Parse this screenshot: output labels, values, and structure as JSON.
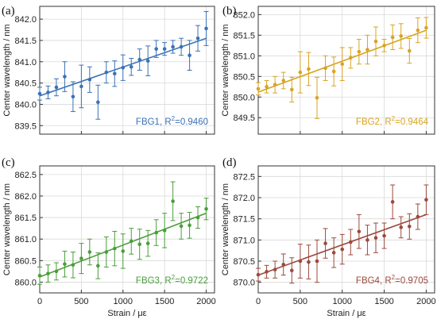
{
  "chart_data": [
    {
      "type": "scatter",
      "panel_label": "(a)",
      "xlabel": "",
      "ylabel": "Center wavelength / nm",
      "xlim": [
        0,
        2100
      ],
      "ylim": [
        839.3,
        842.3
      ],
      "xticks": [
        0,
        500,
        1000,
        1500,
        2000
      ],
      "yticks": [
        839.5,
        840.0,
        840.5,
        841.0,
        841.5,
        842.0
      ],
      "ytick_labels": [
        "839.5",
        "840.0",
        "840.5",
        "841.0",
        "841.5",
        "842.0"
      ],
      "show_xtick_labels": false,
      "grid": true,
      "color": "#3a72b5",
      "annotation": "FBG1, R",
      "annotation_sup": "2",
      "annotation_val": "=0.9460",
      "series": [
        {
          "x": [
            0,
            100,
            200,
            300,
            400,
            500,
            600,
            700,
            800,
            900,
            1000,
            1100,
            1200,
            1300,
            1400,
            1500,
            1600,
            1700,
            1800,
            1900,
            2000
          ],
          "y": [
            840.25,
            840.28,
            840.4,
            840.65,
            840.18,
            840.42,
            840.58,
            840.05,
            840.75,
            840.72,
            840.86,
            840.88,
            841.05,
            841.02,
            841.3,
            841.3,
            841.35,
            841.35,
            841.15,
            841.55,
            841.78
          ],
          "err": [
            0.15,
            0.15,
            0.2,
            0.35,
            0.35,
            0.5,
            0.3,
            0.4,
            0.25,
            0.3,
            0.3,
            0.2,
            0.25,
            0.35,
            0.2,
            0.15,
            0.15,
            0.2,
            0.35,
            0.3,
            0.4
          ]
        }
      ],
      "fit": {
        "x": [
          0,
          2000
        ],
        "y": [
          840.2,
          841.55
        ]
      }
    },
    {
      "type": "scatter",
      "panel_label": "(b)",
      "xlabel": "",
      "ylabel": "Center wavelength / nm",
      "xlim": [
        0,
        2100
      ],
      "ylim": [
        849.1,
        852.2
      ],
      "xticks": [
        0,
        500,
        1000,
        1500,
        2000
      ],
      "yticks": [
        849.5,
        850.0,
        850.5,
        851.0,
        851.5,
        852.0
      ],
      "ytick_labels": [
        "849.5",
        "850.0",
        "850.5",
        "851.0",
        "851.5",
        "852.0"
      ],
      "show_xtick_labels": false,
      "grid": true,
      "color": "#d8a423",
      "annotation": "FBG2, R",
      "annotation_sup": "2",
      "annotation_val": "=0.9464",
      "series": [
        {
          "x": [
            0,
            100,
            200,
            300,
            400,
            500,
            600,
            700,
            800,
            900,
            1000,
            1100,
            1200,
            1300,
            1400,
            1500,
            1600,
            1700,
            1800,
            1900,
            2000
          ],
          "y": [
            850.2,
            850.25,
            850.3,
            850.4,
            850.18,
            850.6,
            850.68,
            849.98,
            850.7,
            850.62,
            850.8,
            850.95,
            851.1,
            851.15,
            851.35,
            851.25,
            851.45,
            851.48,
            851.12,
            851.62,
            851.68
          ],
          "err": [
            0.15,
            0.15,
            0.2,
            0.2,
            0.3,
            0.5,
            0.4,
            0.5,
            0.3,
            0.35,
            0.4,
            0.25,
            0.3,
            0.35,
            0.35,
            0.15,
            0.3,
            0.3,
            0.3,
            0.3,
            0.25
          ]
        }
      ],
      "fit": {
        "x": [
          0,
          2000
        ],
        "y": [
          850.12,
          851.62
        ]
      }
    },
    {
      "type": "scatter",
      "panel_label": "(c)",
      "xlabel": "Strain / με",
      "ylabel": "Center wavelength / nm",
      "xlim": [
        0,
        2100
      ],
      "ylim": [
        859.75,
        862.7
      ],
      "xticks": [
        0,
        500,
        1000,
        1500,
        2000
      ],
      "xtick_labels": [
        "0",
        "500",
        "1000",
        "1500",
        "2000"
      ],
      "yticks": [
        860.0,
        860.5,
        861.0,
        861.5,
        862.0,
        862.5
      ],
      "ytick_labels": [
        "860.0",
        "860.5",
        "861.0",
        "861.5",
        "862.0",
        "862.5"
      ],
      "show_xtick_labels": true,
      "grid": true,
      "color": "#4a9e3a",
      "annotation": "FBG3, R",
      "annotation_sup": "2",
      "annotation_val": "=0.9722",
      "series": [
        {
          "x": [
            0,
            100,
            200,
            300,
            400,
            500,
            600,
            700,
            800,
            900,
            1000,
            1100,
            1200,
            1300,
            1400,
            1500,
            1600,
            1700,
            1800,
            1900,
            2000
          ],
          "y": [
            860.15,
            860.2,
            860.25,
            860.42,
            860.4,
            860.55,
            860.7,
            860.38,
            860.7,
            860.78,
            860.72,
            860.95,
            860.88,
            860.9,
            861.15,
            861.2,
            861.88,
            861.3,
            861.32,
            861.5,
            861.7
          ],
          "err": [
            0.2,
            0.2,
            0.2,
            0.3,
            0.3,
            0.35,
            0.3,
            0.3,
            0.35,
            0.4,
            0.4,
            0.3,
            0.35,
            0.3,
            0.3,
            0.4,
            0.45,
            0.3,
            0.3,
            0.25,
            0.25
          ]
        }
      ],
      "fit": {
        "x": [
          0,
          2000
        ],
        "y": [
          860.12,
          861.6
        ]
      }
    },
    {
      "type": "scatter",
      "panel_label": "(d)",
      "xlabel": "Strain / με",
      "ylabel": "Center wavelength / nm",
      "xlim": [
        0,
        2100
      ],
      "ylim": [
        869.75,
        872.75
      ],
      "xticks": [
        0,
        500,
        1000,
        1500,
        2000
      ],
      "xtick_labels": [
        "0",
        "500",
        "1000",
        "1500",
        "2000"
      ],
      "yticks": [
        870.0,
        870.5,
        871.0,
        871.5,
        872.0,
        872.5
      ],
      "ytick_labels": [
        "870.0",
        "870.5",
        "871.0",
        "871.5",
        "872.0",
        "872.5"
      ],
      "show_xtick_labels": true,
      "grid": true,
      "color": "#9b4a3c",
      "annotation": "FBG4, R",
      "annotation_sup": "2",
      "annotation_val": "=0.9705",
      "series": [
        {
          "x": [
            0,
            100,
            200,
            300,
            400,
            500,
            600,
            700,
            800,
            900,
            1000,
            1100,
            1200,
            1300,
            1400,
            1500,
            1600,
            1700,
            1800,
            1900,
            2000
          ],
          "y": [
            870.18,
            870.25,
            870.3,
            870.42,
            870.28,
            870.5,
            870.48,
            870.5,
            870.92,
            870.7,
            870.78,
            870.95,
            871.2,
            871.0,
            871.05,
            871.1,
            871.9,
            871.3,
            871.32,
            871.55,
            871.95
          ],
          "err": [
            0.15,
            0.15,
            0.2,
            0.25,
            0.3,
            0.4,
            0.4,
            0.5,
            0.35,
            0.35,
            0.35,
            0.3,
            0.4,
            0.35,
            0.35,
            0.3,
            0.4,
            0.25,
            0.3,
            0.3,
            0.35
          ]
        }
      ],
      "fit": {
        "x": [
          0,
          2000
        ],
        "y": [
          870.17,
          871.6
        ]
      }
    }
  ]
}
